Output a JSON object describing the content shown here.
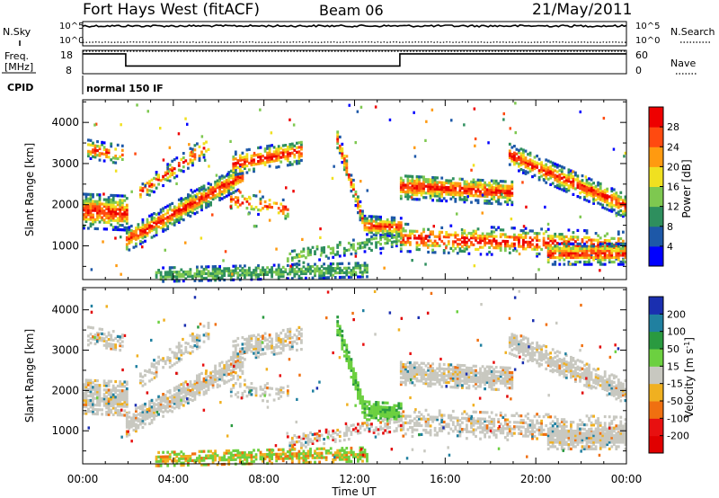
{
  "header": {
    "radar": "Fort Hays West (fitACF)",
    "beam": "Beam 06",
    "date": "21/May/2011"
  },
  "left_labels": {
    "nsky": "N.Sky",
    "freq_line1": "Freq.",
    "freq_line2": "[MHz]",
    "cpid": "CPID"
  },
  "right_labels": {
    "nsearch": "N.Search",
    "nave": "Nave"
  },
  "cpid_value": "normal 150 IF",
  "chart_data": [
    {
      "type": "line",
      "panel": "noise",
      "ylabels_left": [
        "10^5",
        "10^0"
      ],
      "ylabels_right": [
        "10^5",
        "10^0"
      ],
      "series": [
        {
          "name": "N.Sky",
          "style": "solid",
          "level_fraction": 0.82
        },
        {
          "name": "N.Search",
          "style": "dotted",
          "level_fraction": 0.15
        }
      ]
    },
    {
      "type": "line",
      "panel": "frequency",
      "yticks_left": [
        "18",
        "8"
      ],
      "yticks_right": [
        "60",
        "0"
      ],
      "series": [
        {
          "name": "Freq.",
          "style": "solid",
          "points": [
            [
              0,
              16.5
            ],
            [
              1.9,
              16.5
            ],
            [
              1.9,
              11.3
            ],
            [
              14.0,
              11.3
            ],
            [
              14.0,
              16.5
            ],
            [
              24,
              16.5
            ]
          ]
        },
        {
          "name": "Nave",
          "style": "dotted",
          "points": [
            [
              0,
              17.6
            ],
            [
              24,
              17.6
            ]
          ]
        }
      ]
    },
    {
      "type": "heatmap",
      "panel": "power",
      "ylabel": "Slant Range [km]",
      "yticks": [
        "1000",
        "2000",
        "3000",
        "4000"
      ],
      "ylim": [
        180,
        4550
      ],
      "colorbar": {
        "label": "Power [dB]",
        "ticks": [
          "4",
          "8",
          "12",
          "16",
          "20",
          "24",
          "28"
        ],
        "colors": [
          "#0000ff",
          "#1d58a8",
          "#2e8f5e",
          "#7ec850",
          "#f0e020",
          "#ff9a10",
          "#ff4a10",
          "#ee0000"
        ]
      }
    },
    {
      "type": "heatmap",
      "panel": "velocity",
      "ylabel": "Slant Range [km]",
      "yticks": [
        "1000",
        "2000",
        "3000",
        "4000"
      ],
      "ylim": [
        180,
        4550
      ],
      "colorbar": {
        "label": "Velocity [m s",
        "label_sup": "-1",
        "label_end": "]",
        "ticks": [
          "200",
          "100",
          "50",
          "15",
          "-15",
          "-50",
          "-100",
          "-200"
        ],
        "colors": [
          "#1a2fb0",
          "#2080a0",
          "#2a9a40",
          "#6cd040",
          "#c8c8c0",
          "#f0b020",
          "#f07010",
          "#e81010",
          "#e00000"
        ]
      },
      "xlabel": "Time UT",
      "xticks": [
        "00:00",
        "04:00",
        "08:00",
        "12:00",
        "16:00",
        "20:00",
        "00:00"
      ]
    }
  ]
}
